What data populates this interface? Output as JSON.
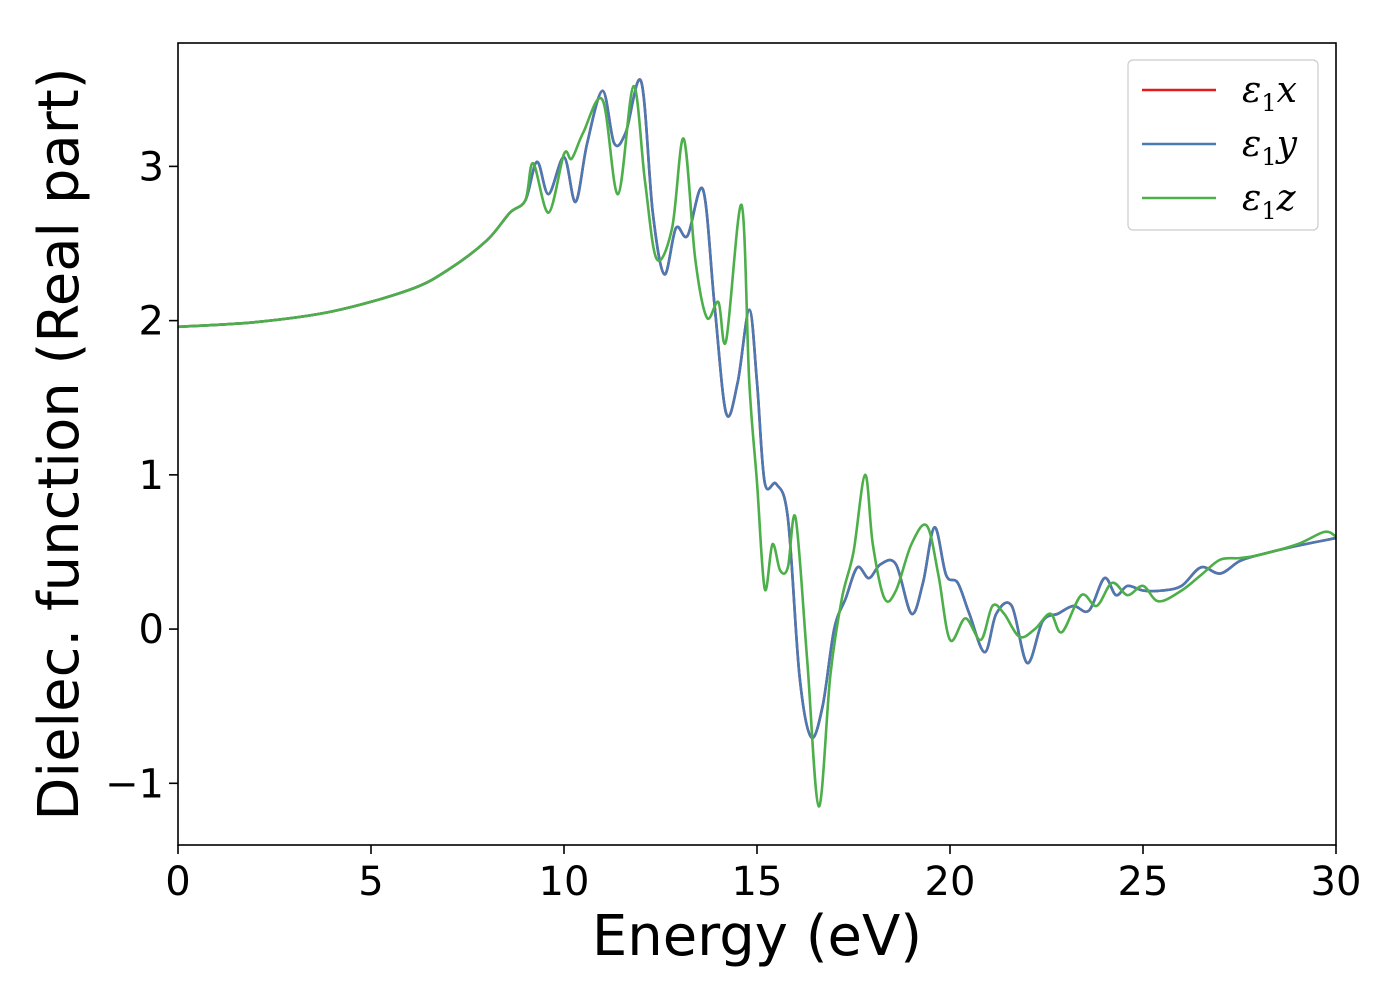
{
  "chart_data": {
    "type": "line",
    "title": "",
    "xlabel": "Energy (eV)",
    "ylabel": "Dielec. function (Real part)",
    "xlim": [
      0,
      30
    ],
    "ylim": [
      -1.4,
      3.8
    ],
    "xticks": [
      0,
      5,
      10,
      15,
      20,
      25,
      30
    ],
    "xtick_labels": [
      "0",
      "5",
      "10",
      "15",
      "20",
      "25",
      "30"
    ],
    "yticks": [
      -1,
      0,
      1,
      2,
      3
    ],
    "ytick_labels": [
      "−1",
      "0",
      "1",
      "2",
      "3"
    ],
    "grid": false,
    "legend_position": "top-right",
    "series": [
      {
        "name": "ε1x",
        "legend": {
          "symbol": "ε",
          "sub": "1",
          "var": "x"
        },
        "color": "#e41a1c",
        "x": [
          0,
          2,
          4,
          6,
          7,
          8,
          8.6,
          9.0,
          9.3,
          9.6,
          10.0,
          10.3,
          10.6,
          11.0,
          11.3,
          11.6,
          12.0,
          12.3,
          12.6,
          12.9,
          13.2,
          13.6,
          13.9,
          14.2,
          14.5,
          14.8,
          15.0,
          15.2,
          15.5,
          15.8,
          16.1,
          16.4,
          16.7,
          17.0,
          17.3,
          17.6,
          17.9,
          18.2,
          18.6,
          19.0,
          19.3,
          19.6,
          19.9,
          20.2,
          20.5,
          20.9,
          21.2,
          21.6,
          22.0,
          22.4,
          22.8,
          23.2,
          23.6,
          24.0,
          24.3,
          24.6,
          25.0,
          25.5,
          26.0,
          26.5,
          27.0,
          27.5,
          28.0,
          29.0,
          30.0
        ],
        "y": [
          1.96,
          1.99,
          2.06,
          2.2,
          2.33,
          2.52,
          2.7,
          2.78,
          3.03,
          2.82,
          3.06,
          2.77,
          3.15,
          3.49,
          3.15,
          3.22,
          3.55,
          2.7,
          2.3,
          2.6,
          2.55,
          2.85,
          2.1,
          1.4,
          1.6,
          2.07,
          1.6,
          0.95,
          0.94,
          0.72,
          -0.3,
          -0.7,
          -0.5,
          0.0,
          0.2,
          0.4,
          0.33,
          0.42,
          0.42,
          0.1,
          0.3,
          0.66,
          0.35,
          0.3,
          0.1,
          -0.15,
          0.1,
          0.15,
          -0.22,
          0.05,
          0.1,
          0.15,
          0.12,
          0.33,
          0.22,
          0.28,
          0.25,
          0.25,
          0.28,
          0.4,
          0.36,
          0.44,
          0.48,
          0.54,
          0.59
        ]
      },
      {
        "name": "ε1y",
        "legend": {
          "symbol": "ε",
          "sub": "1",
          "var": "y"
        },
        "color": "#4a7ab3",
        "x": [
          0,
          2,
          4,
          6,
          7,
          8,
          8.6,
          9.0,
          9.3,
          9.6,
          10.0,
          10.3,
          10.6,
          11.0,
          11.3,
          11.6,
          12.0,
          12.3,
          12.6,
          12.9,
          13.2,
          13.6,
          13.9,
          14.2,
          14.5,
          14.8,
          15.0,
          15.2,
          15.5,
          15.8,
          16.1,
          16.4,
          16.7,
          17.0,
          17.3,
          17.6,
          17.9,
          18.2,
          18.6,
          19.0,
          19.3,
          19.6,
          19.9,
          20.2,
          20.5,
          20.9,
          21.2,
          21.6,
          22.0,
          22.4,
          22.8,
          23.2,
          23.6,
          24.0,
          24.3,
          24.6,
          25.0,
          25.5,
          26.0,
          26.5,
          27.0,
          27.5,
          28.0,
          29.0,
          30.0
        ],
        "y": [
          1.96,
          1.99,
          2.06,
          2.2,
          2.33,
          2.52,
          2.7,
          2.78,
          3.03,
          2.82,
          3.06,
          2.77,
          3.15,
          3.49,
          3.15,
          3.22,
          3.55,
          2.7,
          2.3,
          2.6,
          2.55,
          2.85,
          2.1,
          1.4,
          1.6,
          2.07,
          1.6,
          0.95,
          0.94,
          0.72,
          -0.3,
          -0.7,
          -0.5,
          0.0,
          0.2,
          0.4,
          0.33,
          0.42,
          0.42,
          0.1,
          0.3,
          0.66,
          0.35,
          0.3,
          0.1,
          -0.15,
          0.1,
          0.15,
          -0.22,
          0.05,
          0.1,
          0.15,
          0.12,
          0.33,
          0.22,
          0.28,
          0.25,
          0.25,
          0.28,
          0.4,
          0.36,
          0.44,
          0.48,
          0.54,
          0.59
        ]
      },
      {
        "name": "ε1z",
        "legend": {
          "symbol": "ε",
          "sub": "1",
          "var": "z"
        },
        "color": "#4daf4a",
        "x": [
          0,
          2,
          4,
          6,
          7,
          8,
          8.6,
          9.0,
          9.2,
          9.6,
          10.0,
          10.2,
          10.5,
          11.0,
          11.4,
          11.8,
          12.1,
          12.4,
          12.8,
          13.1,
          13.4,
          13.7,
          14.0,
          14.2,
          14.6,
          14.8,
          15.0,
          15.2,
          15.4,
          15.6,
          15.8,
          16.0,
          16.3,
          16.6,
          16.9,
          17.2,
          17.5,
          17.8,
          18.0,
          18.3,
          18.6,
          19.0,
          19.4,
          19.7,
          20.0,
          20.4,
          20.8,
          21.1,
          21.4,
          21.8,
          22.2,
          22.6,
          22.9,
          23.4,
          23.8,
          24.2,
          24.6,
          25.0,
          25.4,
          26.0,
          26.5,
          27.0,
          27.5,
          28.0,
          29.0,
          29.7,
          30.0
        ],
        "y": [
          1.96,
          1.99,
          2.06,
          2.2,
          2.33,
          2.52,
          2.7,
          2.78,
          3.02,
          2.7,
          3.08,
          3.05,
          3.22,
          3.43,
          2.82,
          3.52,
          2.9,
          2.4,
          2.6,
          3.18,
          2.4,
          2.02,
          2.12,
          1.87,
          2.75,
          1.6,
          0.95,
          0.26,
          0.55,
          0.38,
          0.4,
          0.72,
          -0.2,
          -1.15,
          -0.3,
          0.2,
          0.5,
          1.0,
          0.55,
          0.2,
          0.25,
          0.55,
          0.67,
          0.35,
          -0.07,
          0.07,
          -0.07,
          0.15,
          0.1,
          -0.05,
          0.0,
          0.1,
          -0.02,
          0.22,
          0.15,
          0.3,
          0.22,
          0.28,
          0.18,
          0.25,
          0.35,
          0.45,
          0.46,
          0.48,
          0.55,
          0.63,
          0.6
        ]
      }
    ]
  }
}
